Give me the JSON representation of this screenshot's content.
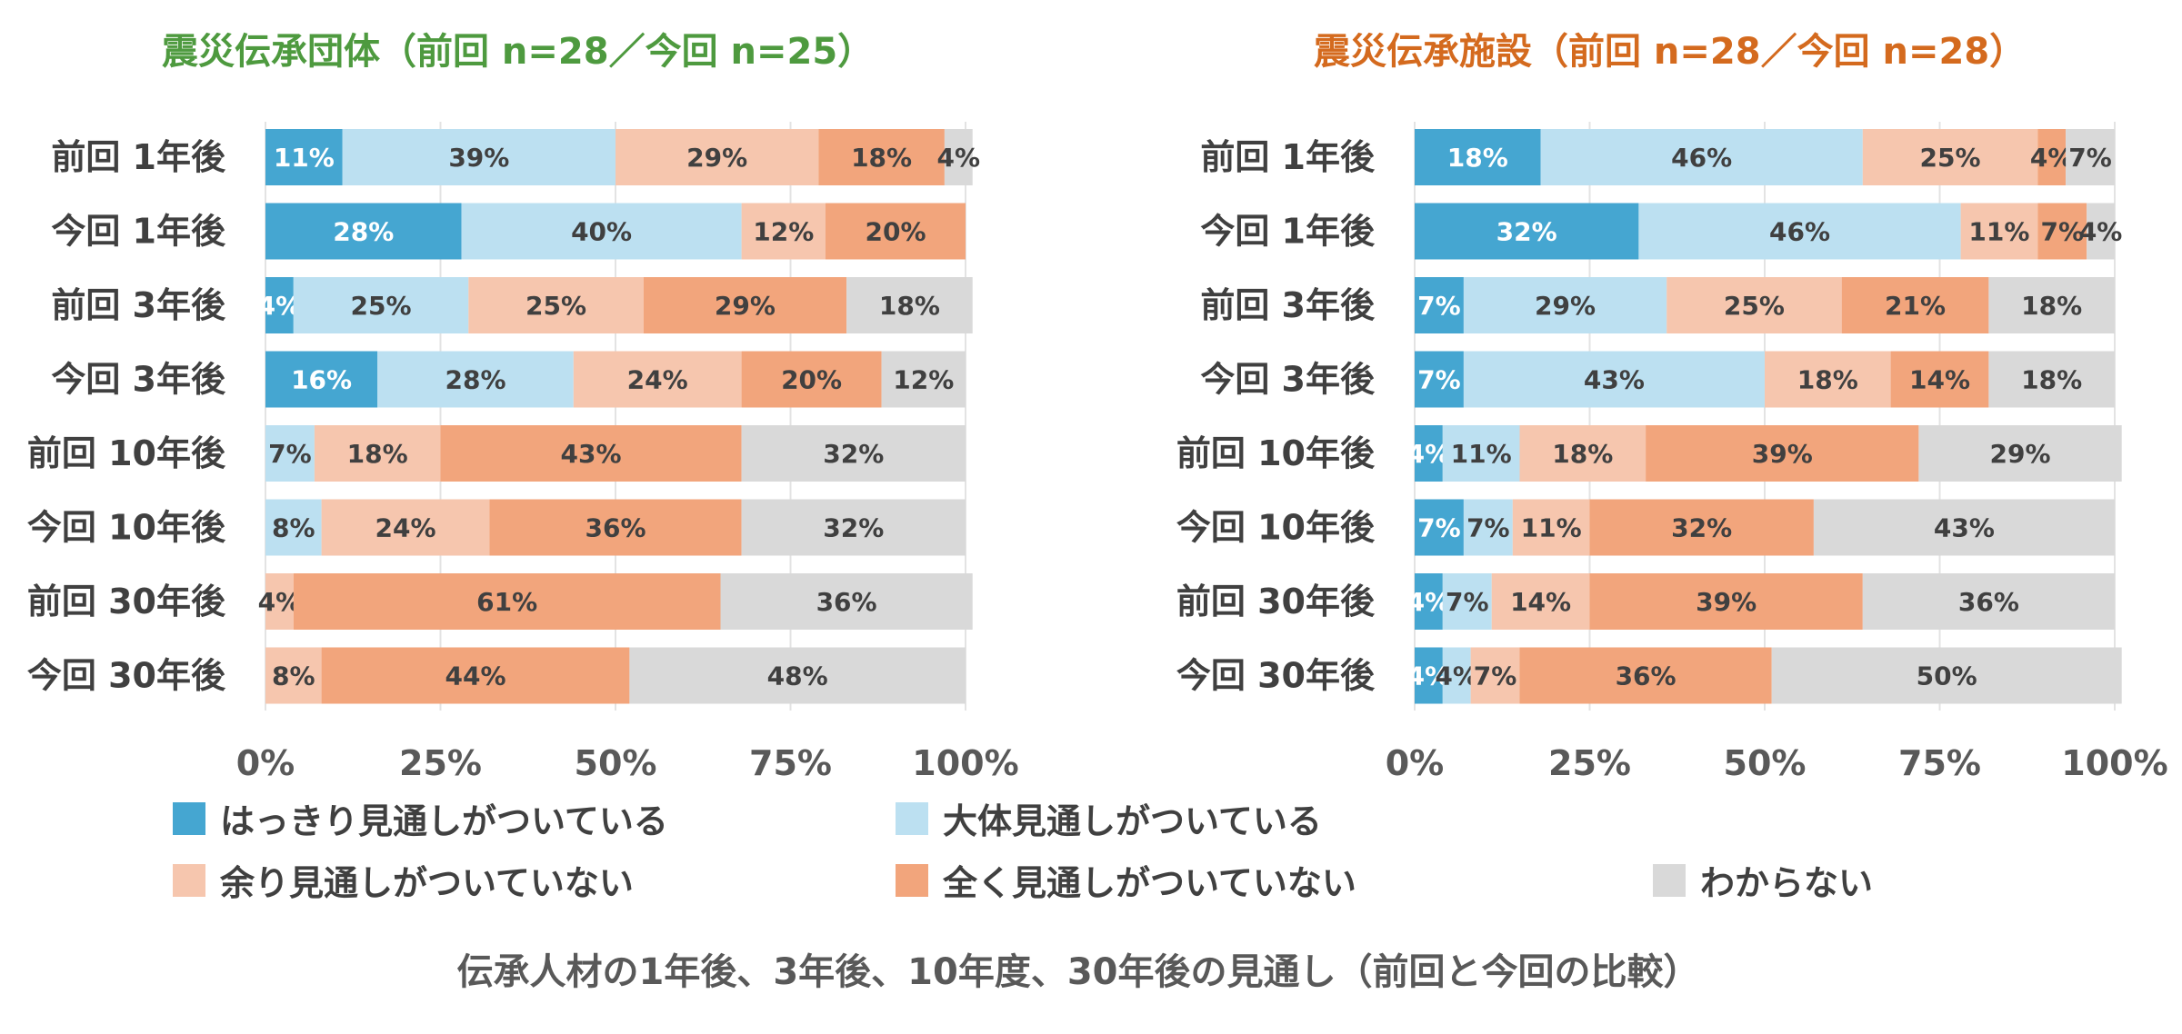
{
  "caption": "伝承人材の1年後、3年後、10年度、30年後の見通し（前回と今回の比較）",
  "colors": [
    "#45A6D1",
    "#BCE0F1",
    "#F6C6AE",
    "#F2A57C",
    "#D9D9D9"
  ],
  "chart_data": [
    {
      "type": "bar",
      "orientation": "horizontal-stacked-100",
      "title": "震災伝承団体（前回 n=28／今回 n=25）",
      "title_color": "#4E9A3F",
      "categories": [
        "前回 1年後",
        "今回 1年後",
        "前回 3年後",
        "今回 3年後",
        "前回 10年後",
        "今回 10年後",
        "前回 30年後",
        "今回 30年後"
      ],
      "series": [
        {
          "name": "はっきり見通しがついている",
          "values": [
            11,
            28,
            4,
            16,
            0,
            0,
            0,
            0
          ],
          "labels": [
            "11%",
            "28%",
            "4%",
            "16%",
            "",
            "",
            "",
            ""
          ]
        },
        {
          "name": "大体見通しがついている",
          "values": [
            39,
            40,
            25,
            28,
            7,
            8,
            0,
            0
          ],
          "labels": [
            "39%",
            "40%",
            "25%",
            "28%",
            "7%",
            "8%",
            "",
            ""
          ]
        },
        {
          "name": "余り見通しがついていない",
          "values": [
            29,
            12,
            25,
            24,
            18,
            24,
            4,
            8
          ],
          "labels": [
            "29%",
            "12%",
            "25%",
            "24%",
            "18%",
            "24%",
            "4%",
            "8%"
          ]
        },
        {
          "name": "全く見通しがついていない",
          "values": [
            18,
            20,
            29,
            20,
            43,
            36,
            61,
            44
          ],
          "labels": [
            "18%",
            "20%",
            "29%",
            "20%",
            "43%",
            "36%",
            "61%",
            "44%"
          ]
        },
        {
          "name": "わからない",
          "values": [
            4,
            0,
            18,
            12,
            32,
            32,
            36,
            48
          ],
          "labels": [
            "4%",
            "",
            "18%",
            "12%",
            "32%",
            "32%",
            "36%",
            "48%"
          ]
        }
      ],
      "xlim": [
        0,
        100
      ],
      "xticks": [
        "0%",
        "25%",
        "50%",
        "75%",
        "100%"
      ]
    },
    {
      "type": "bar",
      "orientation": "horizontal-stacked-100",
      "title": "震災伝承施設（前回 n=28／今回 n=28）",
      "title_color": "#D46A1E",
      "categories": [
        "前回 1年後",
        "今回 1年後",
        "前回 3年後",
        "今回 3年後",
        "前回 10年後",
        "今回 10年後",
        "前回 30年後",
        "今回 30年後"
      ],
      "series": [
        {
          "name": "はっきり見通しがついている",
          "values": [
            18,
            32,
            7,
            7,
            4,
            7,
            4,
            4
          ],
          "labels": [
            "18%",
            "32%",
            "7%",
            "7%",
            "4%",
            "7%",
            "4%",
            "4%"
          ]
        },
        {
          "name": "大体見通しがついている",
          "values": [
            46,
            46,
            29,
            43,
            11,
            7,
            7,
            4
          ],
          "labels": [
            "46%",
            "46%",
            "29%",
            "43%",
            "11%",
            "7%",
            "7%",
            "4%"
          ]
        },
        {
          "name": "余り見通しがついていない",
          "values": [
            25,
            11,
            25,
            18,
            18,
            11,
            14,
            7
          ],
          "labels": [
            "25%",
            "11%",
            "25%",
            "18%",
            "18%",
            "11%",
            "14%",
            "7%"
          ]
        },
        {
          "name": "全く見通しがついていない",
          "values": [
            4,
            7,
            21,
            14,
            39,
            32,
            39,
            36
          ],
          "labels": [
            "4%",
            "7%",
            "21%",
            "14%",
            "39%",
            "32%",
            "39%",
            "36%"
          ]
        },
        {
          "name": "わからない",
          "values": [
            7,
            4,
            18,
            18,
            29,
            43,
            36,
            50
          ],
          "labels": [
            "7%",
            "4%",
            "18%",
            "18%",
            "29%",
            "43%",
            "36%",
            "50%"
          ]
        }
      ],
      "xlim": [
        0,
        100
      ],
      "xticks": [
        "0%",
        "25%",
        "50%",
        "75%",
        "100%"
      ]
    }
  ]
}
